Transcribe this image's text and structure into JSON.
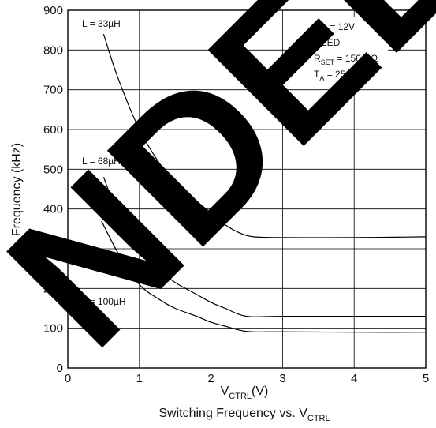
{
  "chart_data": {
    "type": "line",
    "title": "Switching Frequency vs. V",
    "title_sub": "CTRL",
    "xlabel": "V",
    "xlabel_sub": "CTRL",
    "xlabel_suffix": "(V)",
    "ylabel": "Frequency (kHz)",
    "xlim": [
      0,
      5
    ],
    "ylim": [
      0,
      900
    ],
    "xticks": [
      "0",
      "1",
      "2",
      "3",
      "4",
      "5"
    ],
    "yticks": [
      "0",
      "100",
      "200",
      "300",
      "400",
      "500",
      "600",
      "700",
      "800",
      "900"
    ],
    "grid": true,
    "conditions": {
      "vin_main": "V",
      "vin_sub": "IN",
      "vin_value": " = 12V",
      "led": "1 LED",
      "rset_main": "R",
      "rset_sub": "SET",
      "rset_value": " = 150m Ω",
      "ta_main": "T",
      "ta_sub": "A",
      "ta_value": " = 25°C"
    },
    "series": [
      {
        "name": "L = 33µH",
        "x": [
          0.5,
          0.7,
          1.0,
          1.3,
          1.5,
          1.8,
          2.0,
          2.2,
          2.4,
          2.6,
          3.0,
          4.0,
          5.0
        ],
        "y": [
          840,
          730,
          600,
          510,
          470,
          420,
          390,
          360,
          340,
          330,
          328,
          328,
          330
        ]
      },
      {
        "name": "L = 68µH",
        "x": [
          0.5,
          0.7,
          1.0,
          1.3,
          1.5,
          1.8,
          2.0,
          2.2,
          2.5,
          3.0,
          4.0,
          5.0
        ],
        "y": [
          480,
          390,
          300,
          245,
          215,
          185,
          165,
          150,
          130,
          130,
          130,
          130
        ]
      },
      {
        "name": "L = 100µH",
        "x": [
          0.47,
          0.7,
          1.0,
          1.3,
          1.5,
          1.8,
          2.0,
          2.2,
          2.5,
          3.0,
          4.0,
          5.0
        ],
        "y": [
          370,
          290,
          210,
          170,
          150,
          130,
          115,
          105,
          92,
          91,
          90,
          90
        ]
      }
    ]
  },
  "watermark": "NDED"
}
